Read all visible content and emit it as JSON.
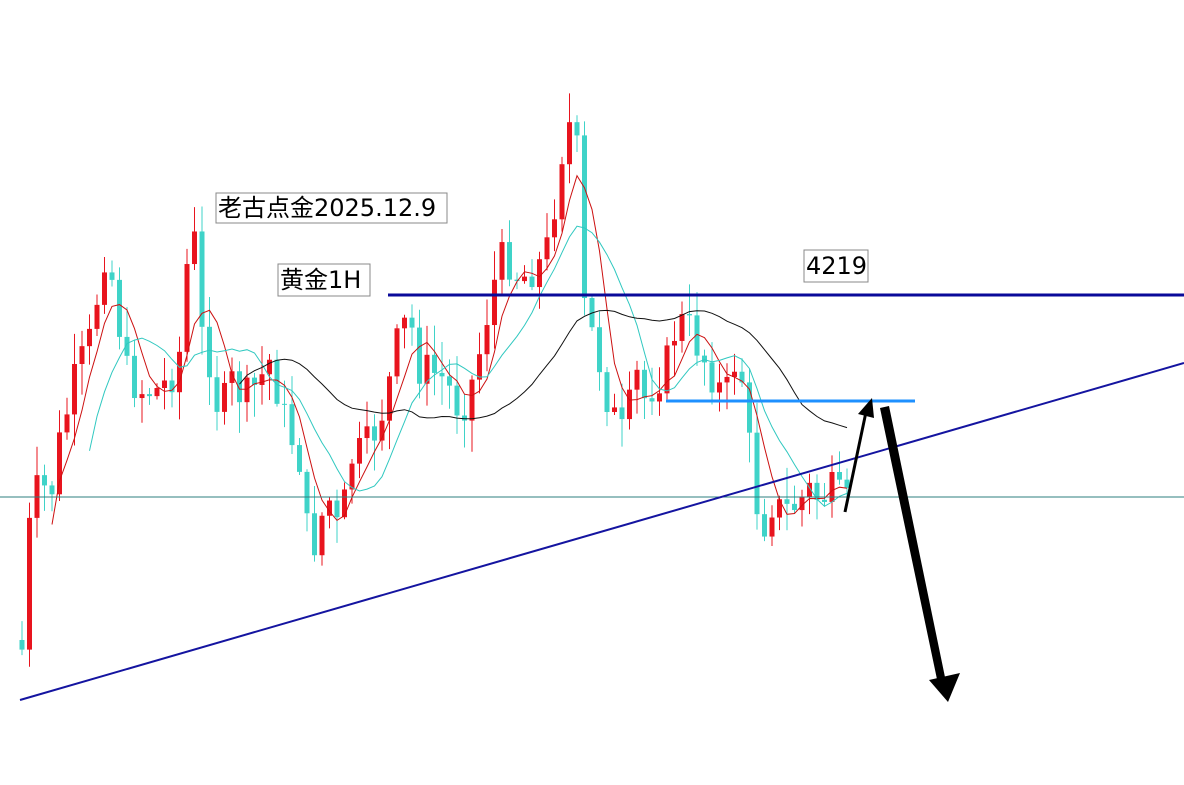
{
  "annotations": {
    "title": "老古点金2025.12.9",
    "symbol": "黄金1H",
    "level": 4219
  }
}
